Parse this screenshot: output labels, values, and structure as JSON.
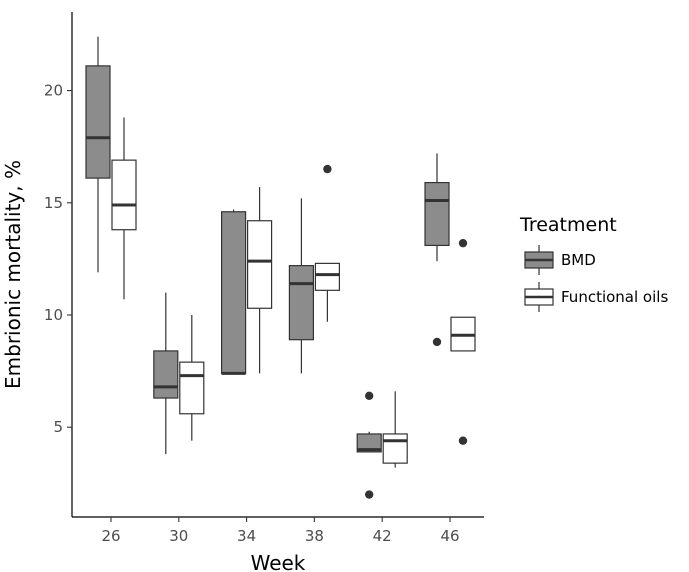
{
  "chart_data": {
    "type": "boxplot",
    "xlabel": "Week",
    "ylabel": "Embrionic mortality, %",
    "categories": [
      "26",
      "30",
      "34",
      "38",
      "42",
      "46"
    ],
    "yticks": [
      5,
      10,
      15,
      20
    ],
    "ylim": [
      1.0,
      23.5
    ],
    "grid": false,
    "legend": {
      "title": "Treatment",
      "position": "right"
    },
    "series": [
      {
        "name": "BMD",
        "color": "#8c8c8c",
        "boxes": [
          {
            "category": "26",
            "min": 11.9,
            "q1": 16.1,
            "median": 17.9,
            "q3": 21.1,
            "max": 22.4,
            "outliers": []
          },
          {
            "category": "30",
            "min": 3.8,
            "q1": 6.3,
            "median": 6.8,
            "q3": 8.4,
            "max": 11.0,
            "outliers": []
          },
          {
            "category": "34",
            "min": 7.4,
            "q1": 7.4,
            "median": 7.4,
            "q3": 14.6,
            "max": 14.7,
            "outliers": []
          },
          {
            "category": "38",
            "min": 7.4,
            "q1": 8.9,
            "median": 11.4,
            "q3": 12.2,
            "max": 15.2,
            "outliers": []
          },
          {
            "category": "42",
            "min": 3.9,
            "q1": 3.9,
            "median": 4.0,
            "q3": 4.7,
            "max": 4.8,
            "outliers": [
              6.4,
              2.0
            ]
          },
          {
            "category": "46",
            "min": 12.4,
            "q1": 13.1,
            "median": 15.1,
            "q3": 15.9,
            "max": 17.2,
            "outliers": [
              8.8
            ]
          }
        ]
      },
      {
        "name": "Functional oils",
        "color": "#ffffff",
        "boxes": [
          {
            "category": "26",
            "min": 10.7,
            "q1": 13.8,
            "median": 14.9,
            "q3": 16.9,
            "max": 18.8,
            "outliers": []
          },
          {
            "category": "30",
            "min": 4.4,
            "q1": 5.6,
            "median": 7.3,
            "q3": 7.9,
            "max": 10.0,
            "outliers": []
          },
          {
            "category": "34",
            "min": 7.4,
            "q1": 10.3,
            "median": 12.4,
            "q3": 14.2,
            "max": 15.7,
            "outliers": []
          },
          {
            "category": "38",
            "min": 9.7,
            "q1": 11.1,
            "median": 11.8,
            "q3": 12.3,
            "max": 12.3,
            "outliers": [
              16.5
            ]
          },
          {
            "category": "42",
            "min": 3.2,
            "q1": 3.4,
            "median": 4.4,
            "q3": 4.7,
            "max": 6.6,
            "outliers": []
          },
          {
            "category": "46",
            "min": 8.4,
            "q1": 8.4,
            "median": 9.1,
            "q3": 9.9,
            "max": 9.9,
            "outliers": [
              13.2,
              4.4
            ]
          }
        ]
      }
    ]
  }
}
